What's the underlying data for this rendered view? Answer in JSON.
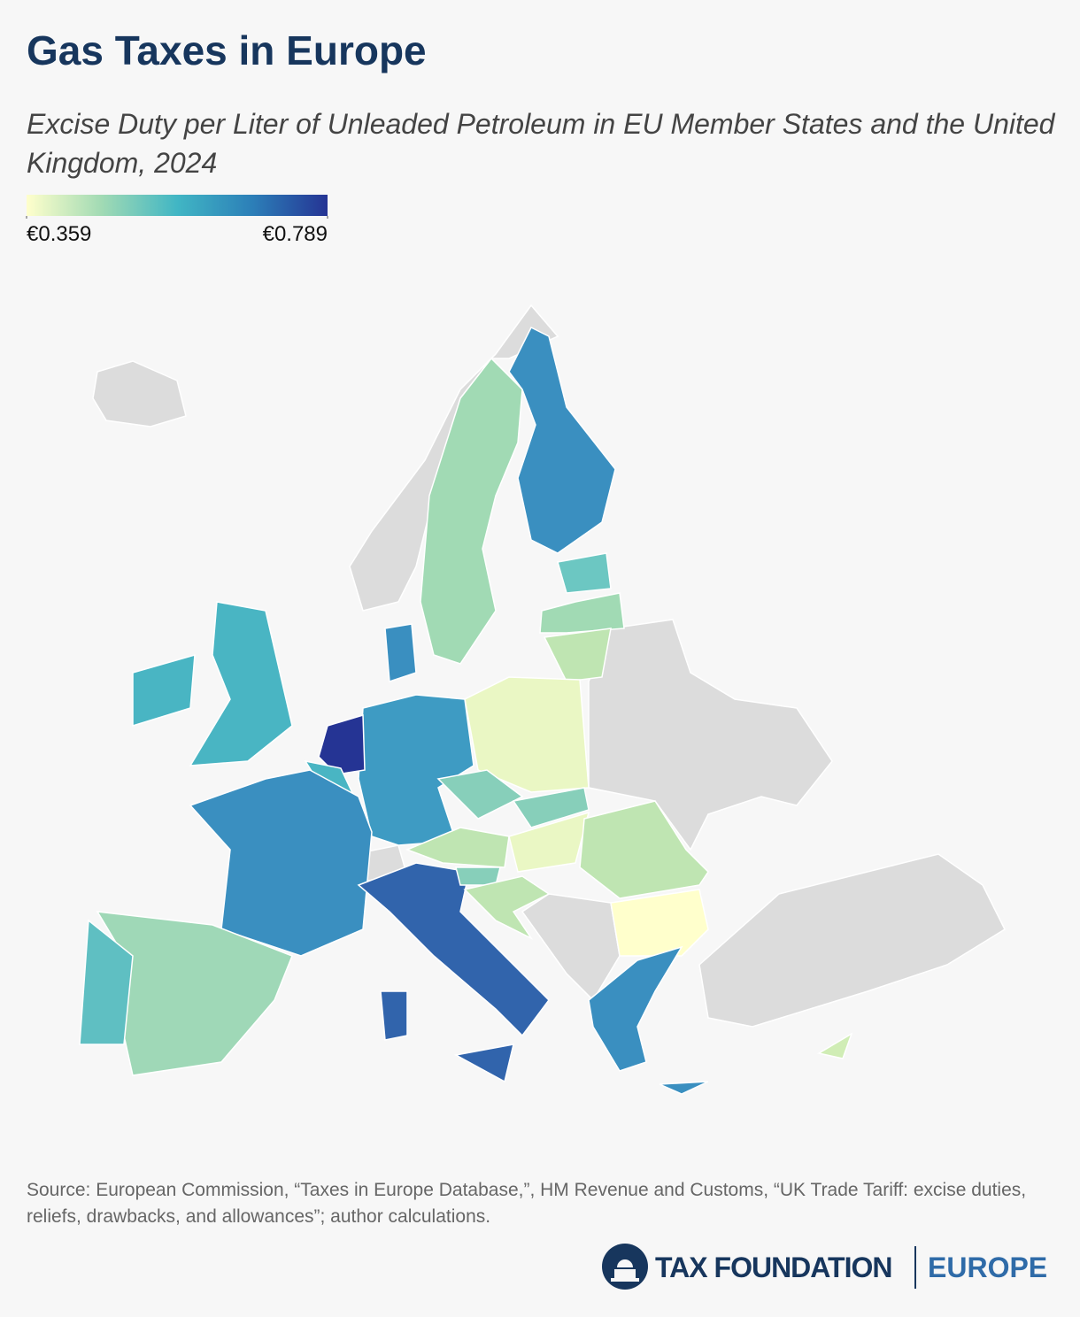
{
  "title": "Gas Taxes in Europe",
  "subtitle": "Excise Duty per Liter of Unleaded Petroleum in EU Member States and the United Kingdom, 2024",
  "legend": {
    "min": {
      "value": 0.359,
      "label": "€0.359"
    },
    "max": {
      "value": 0.789,
      "label": "€0.789"
    },
    "colors": [
      "#ffffcc",
      "#a1dab4",
      "#41b6c4",
      "#2c7fb8",
      "#253494"
    ]
  },
  "source": "Source: European Commission, “Taxes in Europe Database,”, HM Revenue and Customs, “UK Trade Tariff: excise duties, reliefs, drawbacks, and allowances”; author calculations.",
  "logo": {
    "name": "TAX FOUNDATION",
    "region": "EUROPE"
  }
}
